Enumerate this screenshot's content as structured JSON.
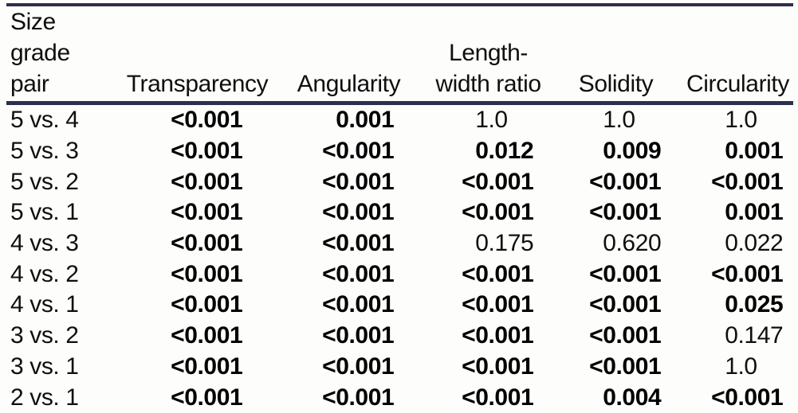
{
  "table": {
    "header": {
      "columns": [
        {
          "id": "size-grade-pair",
          "label": "Size grade pair",
          "label_lines": [
            "Size",
            "grade",
            "pair"
          ]
        },
        {
          "id": "transparency",
          "label": "Transparency",
          "label_lines": [
            "Transparency"
          ]
        },
        {
          "id": "angularity",
          "label": "Angularity",
          "label_lines": [
            "Angularity"
          ]
        },
        {
          "id": "length-width-ratio",
          "label": "Length-width ratio",
          "label_lines": [
            "Length-",
            "width ratio"
          ]
        },
        {
          "id": "solidity",
          "label": "Solidity",
          "label_lines": [
            "Solidity"
          ]
        },
        {
          "id": "circularity",
          "label": "Circularity",
          "label_lines": [
            "Circularity"
          ]
        }
      ]
    },
    "rows": [
      {
        "pair": "5 vs. 4",
        "values": [
          {
            "v": "<0.001",
            "bold": true
          },
          {
            "v": "0.001",
            "bold": true
          },
          {
            "v": "1.0",
            "bold": false
          },
          {
            "v": "1.0",
            "bold": false
          },
          {
            "v": "1.0",
            "bold": false
          }
        ]
      },
      {
        "pair": "5 vs. 3",
        "values": [
          {
            "v": "<0.001",
            "bold": true
          },
          {
            "v": "<0.001",
            "bold": true
          },
          {
            "v": "0.012",
            "bold": true
          },
          {
            "v": "0.009",
            "bold": true
          },
          {
            "v": "0.001",
            "bold": true
          }
        ]
      },
      {
        "pair": "5 vs. 2",
        "values": [
          {
            "v": "<0.001",
            "bold": true
          },
          {
            "v": "<0.001",
            "bold": true
          },
          {
            "v": "<0.001",
            "bold": true
          },
          {
            "v": "<0.001",
            "bold": true
          },
          {
            "v": "<0.001",
            "bold": true
          }
        ]
      },
      {
        "pair": "5 vs. 1",
        "values": [
          {
            "v": "<0.001",
            "bold": true
          },
          {
            "v": "<0.001",
            "bold": true
          },
          {
            "v": "<0.001",
            "bold": true
          },
          {
            "v": "<0.001",
            "bold": true
          },
          {
            "v": "0.001",
            "bold": true
          }
        ]
      },
      {
        "pair": "4 vs. 3",
        "values": [
          {
            "v": "<0.001",
            "bold": true
          },
          {
            "v": "<0.001",
            "bold": true
          },
          {
            "v": "0.175",
            "bold": false
          },
          {
            "v": "0.620",
            "bold": false
          },
          {
            "v": "0.022",
            "bold": false
          }
        ]
      },
      {
        "pair": "4 vs. 2",
        "values": [
          {
            "v": "<0.001",
            "bold": true
          },
          {
            "v": "<0.001",
            "bold": true
          },
          {
            "v": "<0.001",
            "bold": true
          },
          {
            "v": "<0.001",
            "bold": true
          },
          {
            "v": "<0.001",
            "bold": true
          }
        ]
      },
      {
        "pair": "4 vs. 1",
        "values": [
          {
            "v": "<0.001",
            "bold": true
          },
          {
            "v": "<0.001",
            "bold": true
          },
          {
            "v": "<0.001",
            "bold": true
          },
          {
            "v": "<0.001",
            "bold": true
          },
          {
            "v": "0.025",
            "bold": true
          }
        ]
      },
      {
        "pair": "3 vs. 2",
        "values": [
          {
            "v": "<0.001",
            "bold": true
          },
          {
            "v": "<0.001",
            "bold": true
          },
          {
            "v": "<0.001",
            "bold": true
          },
          {
            "v": "<0.001",
            "bold": true
          },
          {
            "v": "0.147",
            "bold": false
          }
        ]
      },
      {
        "pair": "3 vs. 1",
        "values": [
          {
            "v": "<0.001",
            "bold": true
          },
          {
            "v": "<0.001",
            "bold": true
          },
          {
            "v": "<0.001",
            "bold": true
          },
          {
            "v": "<0.001",
            "bold": true
          },
          {
            "v": "1.0",
            "bold": false
          }
        ]
      },
      {
        "pair": "2 vs. 1",
        "values": [
          {
            "v": "<0.001",
            "bold": true
          },
          {
            "v": "<0.001",
            "bold": true
          },
          {
            "v": "<0.001",
            "bold": true
          },
          {
            "v": "0.004",
            "bold": true
          },
          {
            "v": "<0.001",
            "bold": true
          }
        ]
      }
    ],
    "colors": {
      "rule": "#2c2f4e",
      "text": "#0f0f0f",
      "background": "#fdfdfb"
    }
  }
}
